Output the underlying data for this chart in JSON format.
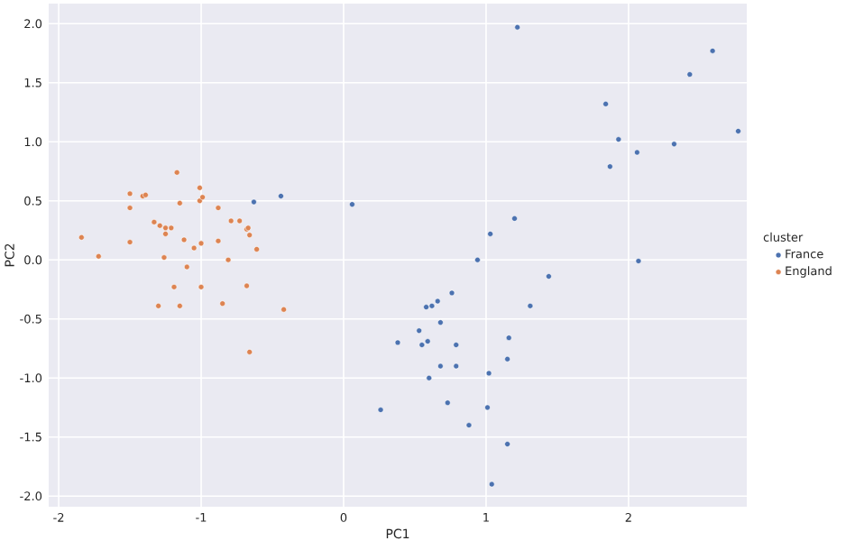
{
  "chart_data": {
    "type": "scatter",
    "xlabel": "PC1",
    "ylabel": "PC2",
    "legend_title": "cluster",
    "xlim": [
      -2.07,
      2.83
    ],
    "ylim": [
      -2.09,
      2.17
    ],
    "xticks": [
      -2,
      -1,
      0,
      1,
      2
    ],
    "yticks": [
      {
        "value": -2,
        "label": "-2.0"
      },
      -1.5,
      {
        "value": -1,
        "label": "-1.0"
      },
      -0.5,
      {
        "value": 0,
        "label": "0.0"
      },
      0.5,
      {
        "value": 1,
        "label": "1.0"
      },
      1.5,
      {
        "value": 2,
        "label": "2.0"
      }
    ],
    "grid": true,
    "legend": "right",
    "series": [
      {
        "name": "France",
        "color": "#4c72b0",
        "x": [
          -0.63,
          -0.44,
          0.06,
          0.26,
          1.22,
          2.59,
          2.43,
          1.84,
          2.77,
          1.93,
          2.32,
          2.06,
          1.87,
          1.2,
          1.03,
          0.94,
          2.07,
          1.44,
          0.76,
          0.66,
          0.62,
          0.58,
          1.31,
          0.68,
          0.53,
          0.38,
          0.55,
          0.59,
          0.79,
          1.16,
          0.68,
          0.79,
          1.15,
          0.6,
          1.02,
          0.73,
          1.01,
          0.88,
          1.15,
          1.04
        ],
        "values": [
          0.49,
          0.54,
          0.47,
          -1.27,
          1.97,
          1.77,
          1.57,
          1.32,
          1.09,
          1.02,
          0.98,
          0.91,
          0.79,
          0.35,
          0.22,
          0.0,
          -0.01,
          -0.14,
          -0.28,
          -0.35,
          -0.39,
          -0.4,
          -0.39,
          -0.53,
          -0.6,
          -0.7,
          -0.72,
          -0.69,
          -0.72,
          -0.66,
          -0.9,
          -0.9,
          -0.84,
          -1.0,
          -0.96,
          -1.21,
          -1.25,
          -1.4,
          -1.56,
          -1.9
        ]
      },
      {
        "name": "England",
        "color": "#dd8452",
        "x": [
          -1.84,
          -1.72,
          -1.5,
          -1.5,
          -1.5,
          -1.41,
          -1.39,
          -1.33,
          -1.29,
          -1.25,
          -1.21,
          -1.25,
          -1.26,
          -1.3,
          -1.19,
          -1.17,
          -1.15,
          -1.15,
          -1.12,
          -1.1,
          -1.05,
          -1.01,
          -1.01,
          -0.99,
          -1.0,
          -1.0,
          -0.88,
          -0.88,
          -0.85,
          -0.81,
          -0.79,
          -0.73,
          -0.68,
          -0.67,
          -0.66,
          -0.61,
          -0.68,
          -0.66,
          -0.42
        ],
        "values": [
          0.19,
          0.03,
          0.56,
          0.44,
          0.15,
          0.54,
          0.55,
          0.32,
          0.29,
          0.27,
          0.27,
          0.22,
          0.02,
          -0.39,
          -0.23,
          0.74,
          0.48,
          -0.39,
          0.17,
          -0.06,
          0.1,
          0.61,
          0.5,
          0.53,
          0.14,
          -0.23,
          0.44,
          0.16,
          -0.37,
          0.0,
          0.33,
          0.33,
          0.26,
          0.27,
          0.21,
          0.09,
          -0.22,
          -0.78,
          -0.42
        ]
      }
    ]
  }
}
